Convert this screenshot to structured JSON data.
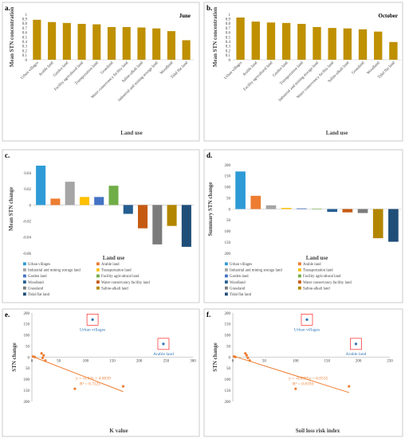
{
  "colors": {
    "gold": "#bf9000",
    "orange": "#ed7d31",
    "blue_point": "#2e75b6",
    "highlight_box": "#ff0000",
    "border": "#bfbfbf"
  },
  "chart_data": [
    {
      "panel": "a.",
      "type": "bar",
      "subtitle": "June",
      "ylabel": "Mean STN concentration",
      "xlabel": "Land use",
      "ylim": [
        0,
        1
      ],
      "yticks": [
        "0",
        "0.1",
        "0.2",
        "0.3",
        "0.4",
        "0.5",
        "0.6",
        "0.7",
        "0.8",
        "0.9",
        "1"
      ],
      "categories": [
        "Urban villages",
        "Arable land",
        "Garden land",
        "Facility agricultural land",
        "Transportation land",
        "Grassland",
        "Water conservancy facility land",
        "Saline-alkali land",
        "Industrial and mining storage land",
        "Woodland",
        "Tidal flat land"
      ],
      "values": [
        0.88,
        0.83,
        0.81,
        0.79,
        0.78,
        0.72,
        0.72,
        0.71,
        0.69,
        0.63,
        0.43
      ]
    },
    {
      "panel": "b.",
      "type": "bar",
      "subtitle": "October",
      "ylabel": "Mean STN concentration",
      "xlabel": "Land use",
      "ylim": [
        0,
        1
      ],
      "yticks": [
        "0",
        "0.1",
        "0.2",
        "0.3",
        "0.4",
        "0.5",
        "0.6",
        "0.7",
        "0.8",
        "0.9",
        "1"
      ],
      "categories": [
        "Urban villages",
        "Arable land",
        "Facility agricultural land",
        "Garden land",
        "Transportation land",
        "Industrial and mining storage land",
        "Water conservancy facility land",
        "Saline-alkali land",
        "Grassland",
        "Woodland",
        "Tidal flat land"
      ],
      "values": [
        0.93,
        0.84,
        0.82,
        0.81,
        0.79,
        0.72,
        0.7,
        0.69,
        0.67,
        0.62,
        0.39
      ]
    },
    {
      "panel": "c.",
      "type": "bar",
      "ylabel": "Mean STN change",
      "xlabel": "Land use",
      "ylim": [
        -0.06,
        0.05
      ],
      "yticks": [
        "0.04",
        "0.02",
        "0",
        "-0.02",
        "-0.04",
        "-0.06"
      ],
      "ytick_values": [
        0.04,
        0.02,
        0,
        -0.02,
        -0.04,
        -0.06
      ],
      "categories": [
        "Urban villages",
        "Arable land",
        "Industrial and mining storage land",
        "Transportation land",
        "Garden land",
        "Facility agricultural land",
        "Woodland",
        "Water conservancy facility land",
        "Grassland",
        "Saline-alkali land",
        "Tidal flat land"
      ],
      "values": [
        0.049,
        0.008,
        0.029,
        0.01,
        0.01,
        0.024,
        -0.011,
        -0.029,
        -0.049,
        -0.026,
        -0.052
      ],
      "bar_colors": [
        "#2e9bd6",
        "#ed7d31",
        "#a5a5a5",
        "#ffc000",
        "#4472c4",
        "#70ad47",
        "#255e91",
        "#c55a11",
        "#7b7b7b",
        "#b38600",
        "#1f4e79"
      ]
    },
    {
      "panel": "d.",
      "type": "bar",
      "ylabel": "Summary STN change",
      "xlabel": "Land use",
      "ylim": [
        -200,
        200
      ],
      "yticks": [
        "200",
        "150",
        "100",
        "50",
        "0",
        "50",
        "100",
        "150",
        "200"
      ],
      "ytick_values": [
        200,
        150,
        100,
        50,
        0,
        -50,
        -100,
        -150,
        -200
      ],
      "categories": [
        "Urban villages",
        "Arable land",
        "Industrial and mining storage land",
        "Transportation land",
        "Garden land",
        "Facility agricultural land",
        "Woodland",
        "Water conservancy facility land",
        "Grassland",
        "Saline-alkali land",
        "Tidal flat land"
      ],
      "values": [
        170,
        60,
        17,
        5,
        3,
        2,
        -13,
        -15,
        -18,
        -132,
        -148
      ],
      "bar_colors": [
        "#2e9bd6",
        "#ed7d31",
        "#a5a5a5",
        "#ffc000",
        "#4472c4",
        "#70ad47",
        "#255e91",
        "#c55a11",
        "#7b7b7b",
        "#b38600",
        "#1f4e79"
      ]
    },
    {
      "panel": "e.",
      "type": "scatter",
      "ylabel": "STN change",
      "xlabel": "K value",
      "xlim": [
        0,
        300
      ],
      "ylim": [
        -200,
        200
      ],
      "xticks": [
        "0",
        "50",
        "100",
        "150",
        "200",
        "250",
        "300"
      ],
      "xtick_values": [
        0,
        50,
        100,
        150,
        200,
        250,
        300
      ],
      "yticks": [
        "200",
        "150",
        "100",
        "50",
        "0",
        "50",
        "100",
        "150",
        "200"
      ],
      "ytick_values": [
        200,
        150,
        100,
        50,
        0,
        -50,
        -100,
        -150,
        -200
      ],
      "points_orange": [
        [
          2,
          3
        ],
        [
          5,
          1
        ],
        [
          18,
          17
        ],
        [
          20,
          -3
        ],
        [
          22,
          8
        ],
        [
          25,
          -15
        ],
        [
          80,
          -143
        ],
        [
          170,
          -132
        ]
      ],
      "points_blue": [
        [
          113,
          170
        ],
        [
          245,
          60
        ]
      ],
      "trend_x": [
        0,
        170
      ],
      "trend_slope": -0.94,
      "trend_intercept": 4.0039,
      "equation": "y = -0.94x + 4.0039",
      "r2": "R² = 0.7225",
      "labels": [
        {
          "text": "Urban villages",
          "x": 113,
          "y": 170
        },
        {
          "text": "Arable land",
          "x": 245,
          "y": 60
        }
      ]
    },
    {
      "panel": "f.",
      "type": "scatter",
      "ylabel": "STN change",
      "xlabel": "Soil loss risk index",
      "xlim": [
        0,
        250
      ],
      "ylim": [
        -200,
        200
      ],
      "xticks": [
        "0",
        "50",
        "100",
        "150",
        "200",
        "250"
      ],
      "xtick_values": [
        0,
        50,
        100,
        150,
        200,
        250
      ],
      "yticks": [
        "200",
        "150",
        "100",
        "50",
        "0",
        "50",
        "100",
        "150",
        "200"
      ],
      "ytick_values": [
        200,
        150,
        100,
        50,
        0,
        -50,
        -100,
        -150,
        -200
      ],
      "points_orange": [
        [
          2,
          3
        ],
        [
          4,
          1
        ],
        [
          20,
          17
        ],
        [
          22,
          8
        ],
        [
          24,
          -3
        ],
        [
          27,
          -15
        ],
        [
          100,
          -143
        ],
        [
          185,
          -132
        ]
      ],
      "points_blue": [
        [
          118,
          170
        ],
        [
          196,
          60
        ]
      ],
      "trend_x": [
        0,
        185
      ],
      "trend_slope": -0.8985,
      "trend_intercept": 6.0535,
      "equation": "y = -0.8985x + 6.0535",
      "r2": "R² = 0.8193",
      "labels": [
        {
          "text": "Urban villages",
          "x": 118,
          "y": 170
        },
        {
          "text": "Arable land",
          "x": 196,
          "y": 60
        }
      ]
    }
  ],
  "legend": {
    "items": [
      {
        "label": "Urban villages",
        "color": "#2e9bd6"
      },
      {
        "label": "Arable land",
        "color": "#ed7d31"
      },
      {
        "label": "Industrial and mining storage land",
        "color": "#a5a5a5"
      },
      {
        "label": "Transportation land",
        "color": "#ffc000"
      },
      {
        "label": "Garden land",
        "color": "#4472c4"
      },
      {
        "label": "Facility agricultural land",
        "color": "#70ad47"
      },
      {
        "label": "Woodland",
        "color": "#255e91"
      },
      {
        "label": "Water conservancy facility land",
        "color": "#c55a11"
      },
      {
        "label": "Grassland",
        "color": "#7b7b7b"
      },
      {
        "label": "Saline-alkali land",
        "color": "#b38600"
      },
      {
        "label": "Tidal flat land",
        "color": "#1f4e79"
      }
    ]
  }
}
